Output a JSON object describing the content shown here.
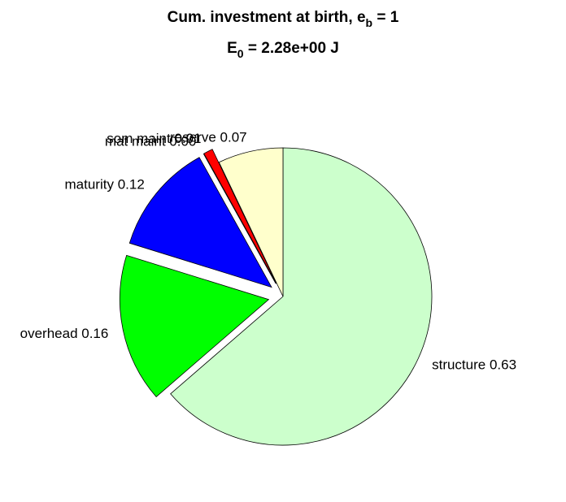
{
  "chart_data": {
    "type": "pie",
    "title": [
      "Cum. investment at birth, e",
      "b",
      " = 1"
    ],
    "subtitle": [
      "E",
      "0",
      " = 2.28e+00 J"
    ],
    "values": [
      0.63,
      0.16,
      0.12,
      0.0,
      0.01,
      0.07
    ],
    "value_labels": [
      "structure 0.63",
      "overhead 0.16",
      "maturity 0.12",
      "mat maint 0.00",
      "som maint 0.01",
      "reserve 0.07"
    ],
    "colors": [
      "#ccffcc",
      "#00ff00",
      "#0000ff",
      "#8000ff",
      "#ff0000",
      "#ffffcc"
    ],
    "explode": [
      false,
      true,
      true,
      true,
      true,
      false
    ]
  }
}
